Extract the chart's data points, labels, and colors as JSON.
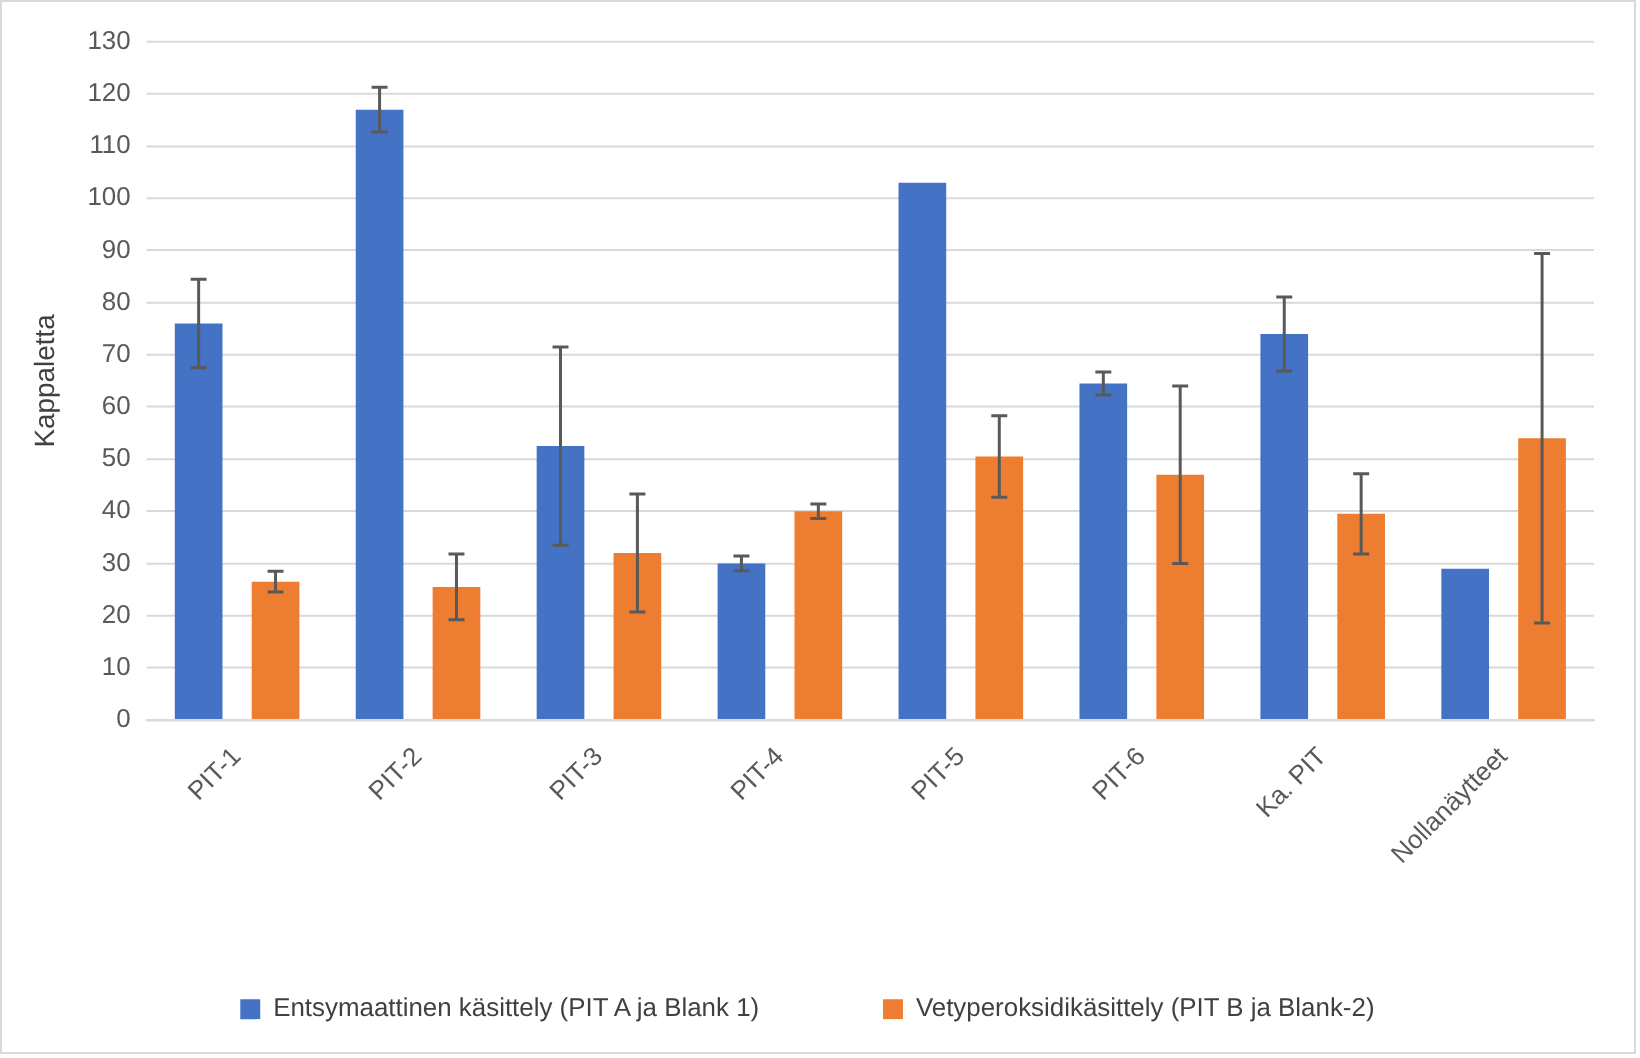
{
  "chart_data": {
    "type": "bar",
    "ylabel": "Kappaletta",
    "categories": [
      "PIT-1",
      "PIT-2",
      "PIT-3",
      "PIT-4",
      "PIT-5",
      "PIT-6",
      "Ka. PIT",
      "Nollanäytteet"
    ],
    "series": [
      {
        "name": "Entsymaattinen käsittely (PIT A ja Blank 1)",
        "color": "#4472c4",
        "values": [
          76,
          117,
          52.5,
          30,
          103,
          64.5,
          74,
          29
        ],
        "errors": [
          8.5,
          4.3,
          19,
          1.4,
          null,
          2.2,
          7.1,
          null
        ]
      },
      {
        "name": "Vetyperoksidikäsittely (PIT B ja Blank-2)",
        "color": "#ed7d31",
        "values": [
          26.5,
          25.5,
          32,
          40,
          50.5,
          47,
          39.5,
          54
        ],
        "errors": [
          2,
          6.3,
          11.3,
          1.4,
          7.8,
          17,
          7.7,
          35.4
        ]
      }
    ],
    "ylim": [
      0,
      130
    ],
    "yticks": [
      0,
      10,
      20,
      30,
      40,
      50,
      60,
      70,
      80,
      90,
      100,
      110,
      120,
      130
    ],
    "grid": "y",
    "legend": "bottom"
  }
}
